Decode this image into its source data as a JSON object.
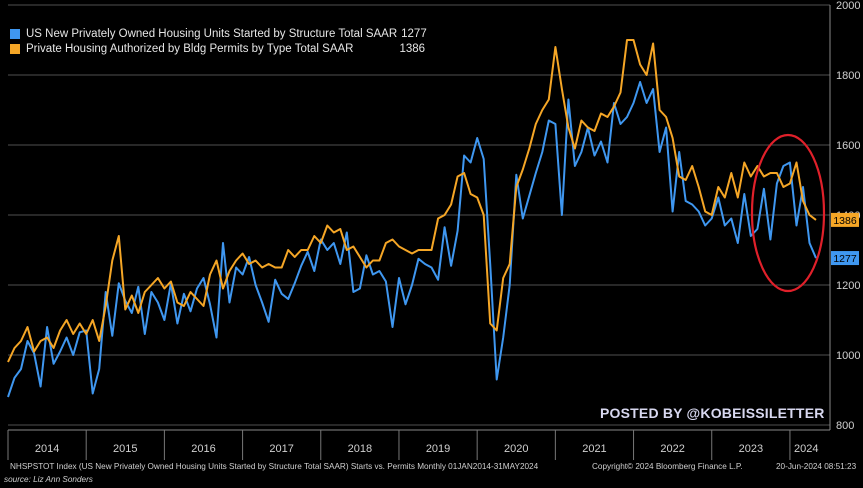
{
  "chart_data": {
    "type": "line",
    "xlim": [
      "2014-01",
      "2024-05"
    ],
    "ylim": [
      800,
      2000
    ],
    "y_ticks": [
      "800",
      "1000",
      "1200",
      "1400",
      "1600",
      "1800",
      "2000"
    ],
    "x_ticks": [
      "2014",
      "2015",
      "2016",
      "2017",
      "2018",
      "2019",
      "2020",
      "2021",
      "2022",
      "2023",
      "2024"
    ],
    "grid": true,
    "y_axis_side": "right",
    "legend_position": "top-left",
    "series": [
      {
        "name": "US New Privately Owned Housing Units Started by Structure Total SAAR",
        "last_value": "1277",
        "color": "#3f97f0",
        "values": [
          880,
          935,
          960,
          1040,
          1005,
          910,
          1080,
          975,
          1010,
          1050,
          1000,
          1065,
          1070,
          890,
          960,
          1180,
          1055,
          1205,
          1155,
          1120,
          1195,
          1060,
          1180,
          1150,
          1100,
          1205,
          1090,
          1175,
          1125,
          1190,
          1220,
          1145,
          1050,
          1320,
          1150,
          1250,
          1230,
          1280,
          1200,
          1150,
          1095,
          1215,
          1175,
          1160,
          1205,
          1255,
          1295,
          1240,
          1330,
          1300,
          1320,
          1260,
          1350,
          1180,
          1190,
          1285,
          1230,
          1240,
          1210,
          1080,
          1220,
          1145,
          1200,
          1275,
          1260,
          1250,
          1215,
          1365,
          1255,
          1355,
          1570,
          1550,
          1620,
          1560,
          1260,
          930,
          1050,
          1200,
          1515,
          1390,
          1455,
          1520,
          1580,
          1670,
          1660,
          1400,
          1730,
          1540,
          1580,
          1650,
          1570,
          1610,
          1550,
          1720,
          1660,
          1680,
          1720,
          1780,
          1720,
          1760,
          1580,
          1650,
          1410,
          1580,
          1440,
          1430,
          1410,
          1370,
          1390,
          1450,
          1370,
          1390,
          1320,
          1460,
          1340,
          1360,
          1475,
          1330,
          1490,
          1540,
          1550,
          1370,
          1480,
          1320,
          1277
        ]
      },
      {
        "name": "Private Housing Authorized by Bldg Permits by Type Total SAAR",
        "last_value": "1386",
        "color": "#f5a626",
        "values": [
          980,
          1020,
          1040,
          1080,
          1010,
          1040,
          1050,
          1020,
          1070,
          1100,
          1060,
          1090,
          1060,
          1100,
          1040,
          1140,
          1270,
          1340,
          1130,
          1170,
          1120,
          1180,
          1200,
          1220,
          1190,
          1210,
          1150,
          1140,
          1180,
          1160,
          1140,
          1230,
          1270,
          1190,
          1240,
          1270,
          1290,
          1260,
          1270,
          1250,
          1260,
          1250,
          1250,
          1300,
          1280,
          1300,
          1300,
          1340,
          1320,
          1370,
          1350,
          1360,
          1300,
          1310,
          1280,
          1250,
          1270,
          1270,
          1320,
          1330,
          1310,
          1300,
          1290,
          1300,
          1300,
          1300,
          1390,
          1400,
          1430,
          1510,
          1520,
          1460,
          1450,
          1400,
          1090,
          1070,
          1220,
          1260,
          1480,
          1530,
          1590,
          1660,
          1700,
          1730,
          1880,
          1760,
          1650,
          1590,
          1670,
          1650,
          1640,
          1690,
          1680,
          1710,
          1750,
          1900,
          1900,
          1830,
          1800,
          1890,
          1700,
          1680,
          1620,
          1510,
          1500,
          1540,
          1480,
          1410,
          1400,
          1480,
          1450,
          1520,
          1450,
          1550,
          1510,
          1540,
          1510,
          1520,
          1520,
          1480,
          1490,
          1550,
          1440,
          1400,
          1386
        ]
      }
    ]
  },
  "watermark": "POSTED BY @KOBEISSILETTER",
  "footer": {
    "description": "NHSPSTOT Index (US New Privately Owned Housing Units Started by Structure Total SAAR) Starts vs. Permits  Monthly 01JAN2014-31MAY2024",
    "copyright": "Copyright© 2024 Bloomberg Finance L.P.",
    "timestamp": "20-Jun-2024 08:51:23",
    "source": "source: Liz Ann Sonders"
  }
}
